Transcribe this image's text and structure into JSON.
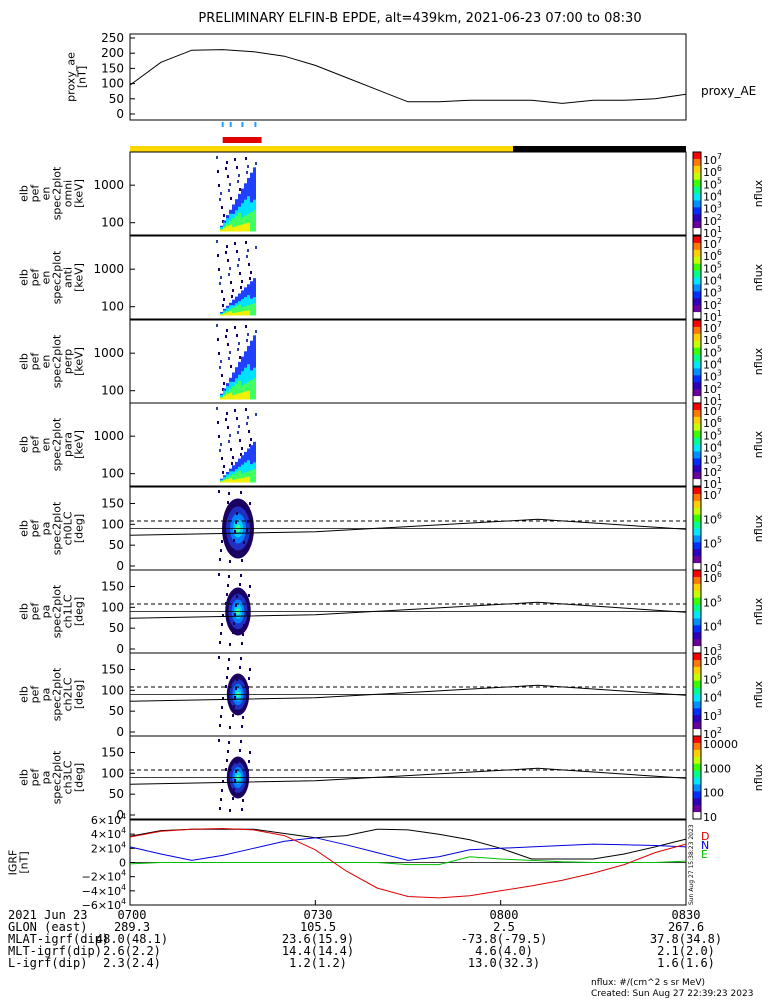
{
  "title": "PRELIMINARY ELFIN-B EPDE, alt=439km, 2021-06-23 07:00 to 08:30",
  "colors": {
    "sci_zone": "#ffd600",
    "eclipse": "#000000",
    "fast_mode": "#e00000",
    "ticks_blue": "#1ea0ff",
    "igrf_d": "#e00000",
    "igrf_n": "#0000e0",
    "igrf_e": "#00c000",
    "igrf_tot": "#000000"
  },
  "panels": [
    {
      "id": "ae",
      "ylabel": [
        "proxy_ae",
        "[nT]"
      ],
      "right_label": "proxy_AE"
    },
    {
      "id": "omni",
      "ylabel": [
        "elb",
        "pef",
        "en",
        "spec2plot",
        "omni",
        "[keV]"
      ],
      "cbar_label": "nflux",
      "cbar_ticks": [
        "10^7",
        "10^6",
        "10^5",
        "10^4",
        "10^3",
        "10^2",
        "10^1"
      ]
    },
    {
      "id": "anti",
      "ylabel": [
        "elb",
        "pef",
        "en",
        "spec2plot",
        "anti",
        "[keV]"
      ],
      "cbar_label": "nflux",
      "cbar_ticks": [
        "10^7",
        "10^6",
        "10^5",
        "10^4",
        "10^3",
        "10^2",
        "10^1"
      ]
    },
    {
      "id": "perp",
      "ylabel": [
        "elb",
        "pef",
        "en",
        "spec2plot",
        "perp",
        "[keV]"
      ],
      "cbar_label": "nflux",
      "cbar_ticks": [
        "10^7",
        "10^6",
        "10^5",
        "10^4",
        "10^3",
        "10^2",
        "10^1"
      ]
    },
    {
      "id": "para",
      "ylabel": [
        "elb",
        "pef",
        "en",
        "spec2plot",
        "para",
        "[keV]"
      ],
      "cbar_label": "nflux",
      "cbar_ticks": [
        "10^7",
        "10^6",
        "10^5",
        "10^4",
        "10^3",
        "10^2",
        "10^1"
      ]
    },
    {
      "id": "ch0",
      "ylabel": [
        "elb",
        "pef",
        "pa",
        "spec2plot",
        "ch0LC",
        "[deg]"
      ],
      "cbar_label": "nflux",
      "cbar_ticks": [
        "10^7",
        "10^6",
        "10^5",
        "10^4"
      ]
    },
    {
      "id": "ch1",
      "ylabel": [
        "elb",
        "pef",
        "pa",
        "spec2plot",
        "ch1LC",
        "[deg]"
      ],
      "cbar_label": "nflux",
      "cbar_ticks": [
        "10^6",
        "10^5",
        "10^4",
        "10^3"
      ]
    },
    {
      "id": "ch2",
      "ylabel": [
        "elb",
        "pef",
        "pa",
        "spec2plot",
        "ch2LC",
        "[deg]"
      ],
      "cbar_label": "nflux",
      "cbar_ticks": [
        "10^6",
        "10^5",
        "10^4",
        "10^3",
        "10^2"
      ]
    },
    {
      "id": "ch3",
      "ylabel": [
        "elb",
        "pef",
        "pa",
        "spec2plot",
        "ch3LC",
        "[deg]"
      ],
      "cbar_label": "nflux",
      "cbar_ticks": [
        "10000",
        "1000",
        "100",
        "10"
      ]
    },
    {
      "id": "igrf",
      "ylabel": [
        "IGRF",
        "[nT]"
      ]
    }
  ],
  "chart_data": {
    "type": "line",
    "x_range": [
      "07:00",
      "08:30"
    ],
    "proxy_ae": {
      "ylim": [
        0,
        250
      ],
      "yticks": [
        "250",
        "200",
        "150",
        "100",
        "50",
        "0"
      ],
      "x_min": [
        0,
        5,
        10,
        15,
        20,
        25,
        30,
        35,
        40,
        45,
        50,
        55,
        60,
        65,
        70,
        75,
        80,
        85,
        90
      ],
      "values": [
        95,
        170,
        210,
        212,
        205,
        190,
        160,
        120,
        80,
        40,
        40,
        45,
        45,
        45,
        35,
        45,
        45,
        50,
        65
      ]
    },
    "bars": {
      "sci_zone_minutes": [
        0,
        62
      ],
      "eclipse_minutes": [
        62,
        90
      ],
      "fast_mode_minutes": [
        15,
        21.3
      ],
      "blue_tick_minutes": [
        15,
        16.3,
        18.2,
        20.3
      ]
    },
    "energy_panels": {
      "yticks": [
        "1000",
        "100"
      ],
      "ylim_keV": [
        60,
        6000
      ]
    },
    "pa_panels": {
      "yticks": [
        "150",
        "100",
        "50",
        "0"
      ],
      "ylim_deg": [
        0,
        180
      ],
      "solid_line": {
        "x_min": [
          0,
          30,
          66,
          90
        ],
        "deg": [
          74,
          82,
          112,
          88
        ]
      },
      "dashed_upper_deg": 108
    },
    "igrf": {
      "ylim": [
        -60000,
        60000
      ],
      "yticks": [
        "6×10^4",
        "4×10^4",
        "2×10^4",
        "0",
        "−2×10^4",
        "−4×10^4",
        "−6×10^4"
      ],
      "legend": [
        "D",
        "N",
        "E"
      ],
      "x_min": [
        0,
        5,
        10,
        15,
        20,
        25,
        30,
        35,
        40,
        45,
        50,
        55,
        60,
        65,
        70,
        75,
        80,
        85,
        90
      ],
      "black": [
        37000,
        45000,
        47000,
        47000,
        47000,
        41000,
        35000,
        38000,
        47000,
        46000,
        40000,
        32000,
        20000,
        5000,
        5000,
        5000,
        12000,
        22000,
        33000
      ],
      "red": [
        36000,
        44000,
        47000,
        48000,
        46000,
        38000,
        18000,
        -12000,
        -36000,
        -48000,
        -50000,
        -47000,
        -40000,
        -33000,
        -25000,
        -15000,
        -3000,
        14000,
        26000
      ],
      "blue": [
        22000,
        12000,
        3000,
        10000,
        20000,
        30000,
        35000,
        25000,
        14000,
        3000,
        8000,
        18000,
        20000,
        22000,
        24000,
        26000,
        25000,
        24000,
        22000
      ],
      "green": [
        -2000,
        0,
        0,
        0,
        0,
        0,
        0,
        0,
        0,
        -3000,
        -3000,
        8000,
        5000,
        3000,
        1000,
        0,
        0,
        0,
        2000
      ]
    }
  },
  "footer": {
    "rows": [
      {
        "label": "2021 Jun 23",
        "values": [
          "0700",
          "0730",
          "0800",
          "0830"
        ]
      },
      {
        "label": "GLON (east)",
        "values": [
          "289.3",
          "105.5",
          "2.5",
          "267.6"
        ]
      },
      {
        "label": "MLAT-igrf(dip)",
        "values": [
          "48.0(48.1)",
          "23.6(15.9)",
          "-73.8(-79.5)",
          "37.8(34.8)"
        ]
      },
      {
        "label": "MLT-igrf(dip)",
        "values": [
          "2.6(2.2)",
          "14.4(14.4)",
          "4.6(4.0)",
          "2.1(2.0)"
        ]
      },
      {
        "label": "L-igrf(dip)",
        "values": [
          "2.3(2.4)",
          "1.2(1.2)",
          "13.0(32.3)",
          "1.6(1.6)"
        ]
      }
    ],
    "units_note": "nflux: #/(cm^2 s sr MeV)",
    "created": "Created: Sun Aug 27 22:39:23 2023",
    "side_stamp": "Sun Aug 27 15:38:23 2023"
  }
}
